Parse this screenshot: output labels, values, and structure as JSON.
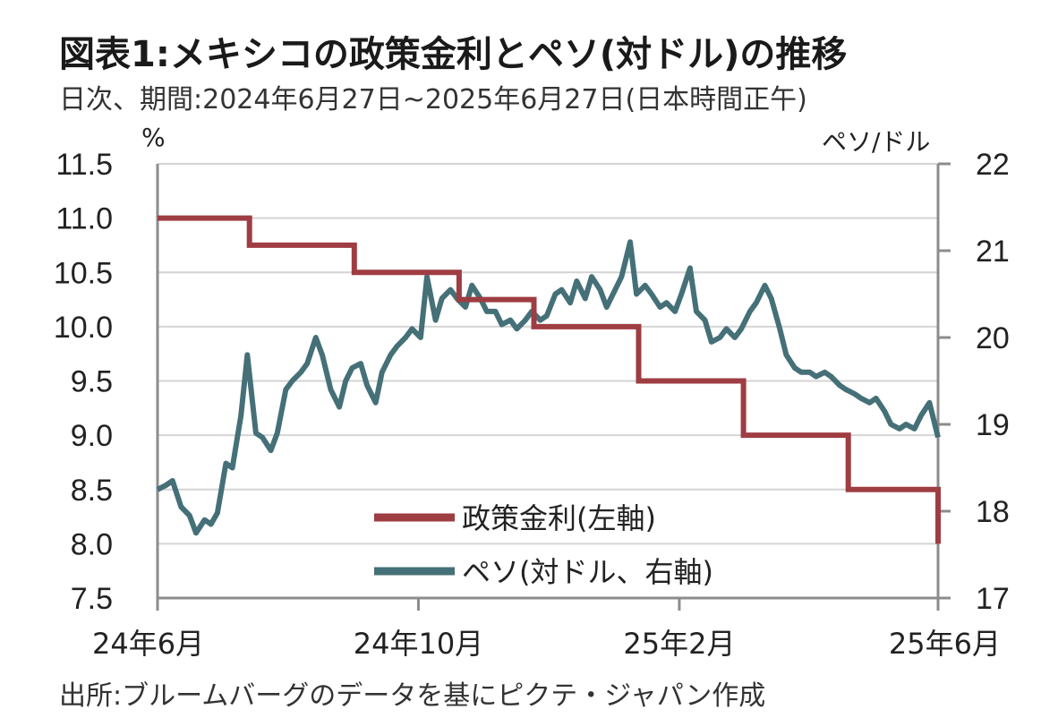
{
  "title": "図表1:メキシコの政策金利とペソ(対ドル)の推移",
  "subtitle": "日次、期間:2024年6月27日~2025年6月27日(日本時間正午)",
  "source": "出所:ブルームバーグのデータを基にピクテ・ジャパン作成",
  "chart_data": {
    "type": "line",
    "x_start": "2024-06-27",
    "x_end": "2025-06-27",
    "x_ticks": [
      "24年6月",
      "24年10月",
      "25年2月",
      "25年6月"
    ],
    "left_axis": {
      "unit": "%",
      "ylim": [
        7.5,
        11.5
      ],
      "ticks": [
        7.5,
        8.0,
        8.5,
        9.0,
        9.5,
        10.0,
        10.5,
        11.0,
        11.5
      ]
    },
    "right_axis": {
      "unit": "ペソ/ドル",
      "ylim": [
        17,
        22
      ],
      "ticks": [
        17,
        18,
        19,
        20,
        21,
        22
      ]
    },
    "colors": {
      "policy_rate": "#9e3d42",
      "peso": "#457078",
      "grid": "#d4d4d4",
      "axis": "#8c8c8c"
    },
    "series": [
      {
        "name": "政策金利(左軸)",
        "axis": "left",
        "step": true,
        "points": [
          [
            "2024-06-27",
            11.0
          ],
          [
            "2024-08-09",
            10.75
          ],
          [
            "2024-09-27",
            10.5
          ],
          [
            "2024-11-15",
            10.25
          ],
          [
            "2024-12-20",
            10.0
          ],
          [
            "2025-02-07",
            9.5
          ],
          [
            "2025-03-28",
            9.0
          ],
          [
            "2025-05-16",
            8.5
          ],
          [
            "2025-06-27",
            8.0
          ]
        ]
      },
      {
        "name": "ペソ(対ドル、右軸)",
        "axis": "right",
        "points": [
          [
            "2024-06-27",
            18.25
          ],
          [
            "2024-07-01",
            18.3
          ],
          [
            "2024-07-04",
            18.35
          ],
          [
            "2024-07-08",
            18.05
          ],
          [
            "2024-07-12",
            17.95
          ],
          [
            "2024-07-15",
            17.75
          ],
          [
            "2024-07-19",
            17.9
          ],
          [
            "2024-07-22",
            17.85
          ],
          [
            "2024-07-25",
            17.98
          ],
          [
            "2024-07-29",
            18.55
          ],
          [
            "2024-08-01",
            18.5
          ],
          [
            "2024-08-05",
            19.1
          ],
          [
            "2024-08-08",
            19.8
          ],
          [
            "2024-08-12",
            18.9
          ],
          [
            "2024-08-15",
            18.85
          ],
          [
            "2024-08-19",
            18.7
          ],
          [
            "2024-08-22",
            18.9
          ],
          [
            "2024-08-26",
            19.4
          ],
          [
            "2024-08-29",
            19.5
          ],
          [
            "2024-09-02",
            19.6
          ],
          [
            "2024-09-05",
            19.7
          ],
          [
            "2024-09-09",
            20.0
          ],
          [
            "2024-09-12",
            19.8
          ],
          [
            "2024-09-16",
            19.4
          ],
          [
            "2024-09-20",
            19.2
          ],
          [
            "2024-09-23",
            19.5
          ],
          [
            "2024-09-26",
            19.65
          ],
          [
            "2024-09-30",
            19.7
          ],
          [
            "2024-10-03",
            19.45
          ],
          [
            "2024-10-07",
            19.25
          ],
          [
            "2024-10-10",
            19.6
          ],
          [
            "2024-10-14",
            19.8
          ],
          [
            "2024-10-17",
            19.9
          ],
          [
            "2024-10-21",
            20.0
          ],
          [
            "2024-10-24",
            20.1
          ],
          [
            "2024-10-28",
            20.0
          ],
          [
            "2024-10-31",
            20.7
          ],
          [
            "2024-11-04",
            20.2
          ],
          [
            "2024-11-07",
            20.45
          ],
          [
            "2024-11-11",
            20.55
          ],
          [
            "2024-11-14",
            20.45
          ],
          [
            "2024-11-18",
            20.35
          ],
          [
            "2024-11-21",
            20.6
          ],
          [
            "2024-11-25",
            20.45
          ],
          [
            "2024-11-28",
            20.3
          ],
          [
            "2024-12-02",
            20.3
          ],
          [
            "2024-12-05",
            20.15
          ],
          [
            "2024-12-09",
            20.2
          ],
          [
            "2024-12-12",
            20.1
          ],
          [
            "2024-12-16",
            20.2
          ],
          [
            "2024-12-19",
            20.3
          ],
          [
            "2024-12-23",
            20.2
          ],
          [
            "2024-12-26",
            20.25
          ],
          [
            "2024-12-30",
            20.5
          ],
          [
            "2025-01-02",
            20.55
          ],
          [
            "2025-01-06",
            20.4
          ],
          [
            "2025-01-09",
            20.65
          ],
          [
            "2025-01-13",
            20.45
          ],
          [
            "2025-01-16",
            20.7
          ],
          [
            "2025-01-20",
            20.55
          ],
          [
            "2025-01-23",
            20.35
          ],
          [
            "2025-01-27",
            20.55
          ],
          [
            "2025-01-30",
            20.7
          ],
          [
            "2025-02-03",
            21.1
          ],
          [
            "2025-02-06",
            20.5
          ],
          [
            "2025-02-10",
            20.6
          ],
          [
            "2025-02-13",
            20.5
          ],
          [
            "2025-02-17",
            20.35
          ],
          [
            "2025-02-20",
            20.4
          ],
          [
            "2025-02-24",
            20.3
          ],
          [
            "2025-02-27",
            20.5
          ],
          [
            "2025-03-03",
            20.8
          ],
          [
            "2025-03-06",
            20.3
          ],
          [
            "2025-03-10",
            20.2
          ],
          [
            "2025-03-13",
            19.95
          ],
          [
            "2025-03-17",
            20.0
          ],
          [
            "2025-03-20",
            20.1
          ],
          [
            "2025-03-24",
            20.0
          ],
          [
            "2025-03-27",
            20.1
          ],
          [
            "2025-03-31",
            20.3
          ],
          [
            "2025-04-03",
            20.4
          ],
          [
            "2025-04-07",
            20.6
          ],
          [
            "2025-04-10",
            20.45
          ],
          [
            "2025-04-14",
            20.1
          ],
          [
            "2025-04-17",
            19.8
          ],
          [
            "2025-04-21",
            19.65
          ],
          [
            "2025-04-24",
            19.6
          ],
          [
            "2025-04-28",
            19.6
          ],
          [
            "2025-05-01",
            19.55
          ],
          [
            "2025-05-05",
            19.6
          ],
          [
            "2025-05-08",
            19.55
          ],
          [
            "2025-05-12",
            19.45
          ],
          [
            "2025-05-15",
            19.4
          ],
          [
            "2025-05-19",
            19.35
          ],
          [
            "2025-05-22",
            19.3
          ],
          [
            "2025-05-26",
            19.25
          ],
          [
            "2025-05-29",
            19.3
          ],
          [
            "2025-06-02",
            19.15
          ],
          [
            "2025-06-05",
            19.0
          ],
          [
            "2025-06-09",
            18.95
          ],
          [
            "2025-06-12",
            19.0
          ],
          [
            "2025-06-16",
            18.95
          ],
          [
            "2025-06-19",
            19.1
          ],
          [
            "2025-06-23",
            19.25
          ],
          [
            "2025-06-27",
            18.85
          ]
        ]
      }
    ],
    "legend": {
      "placement": "bottom-center",
      "items": [
        "政策金利(左軸)",
        "ペソ(対ドル、右軸)"
      ]
    },
    "grid": true
  }
}
